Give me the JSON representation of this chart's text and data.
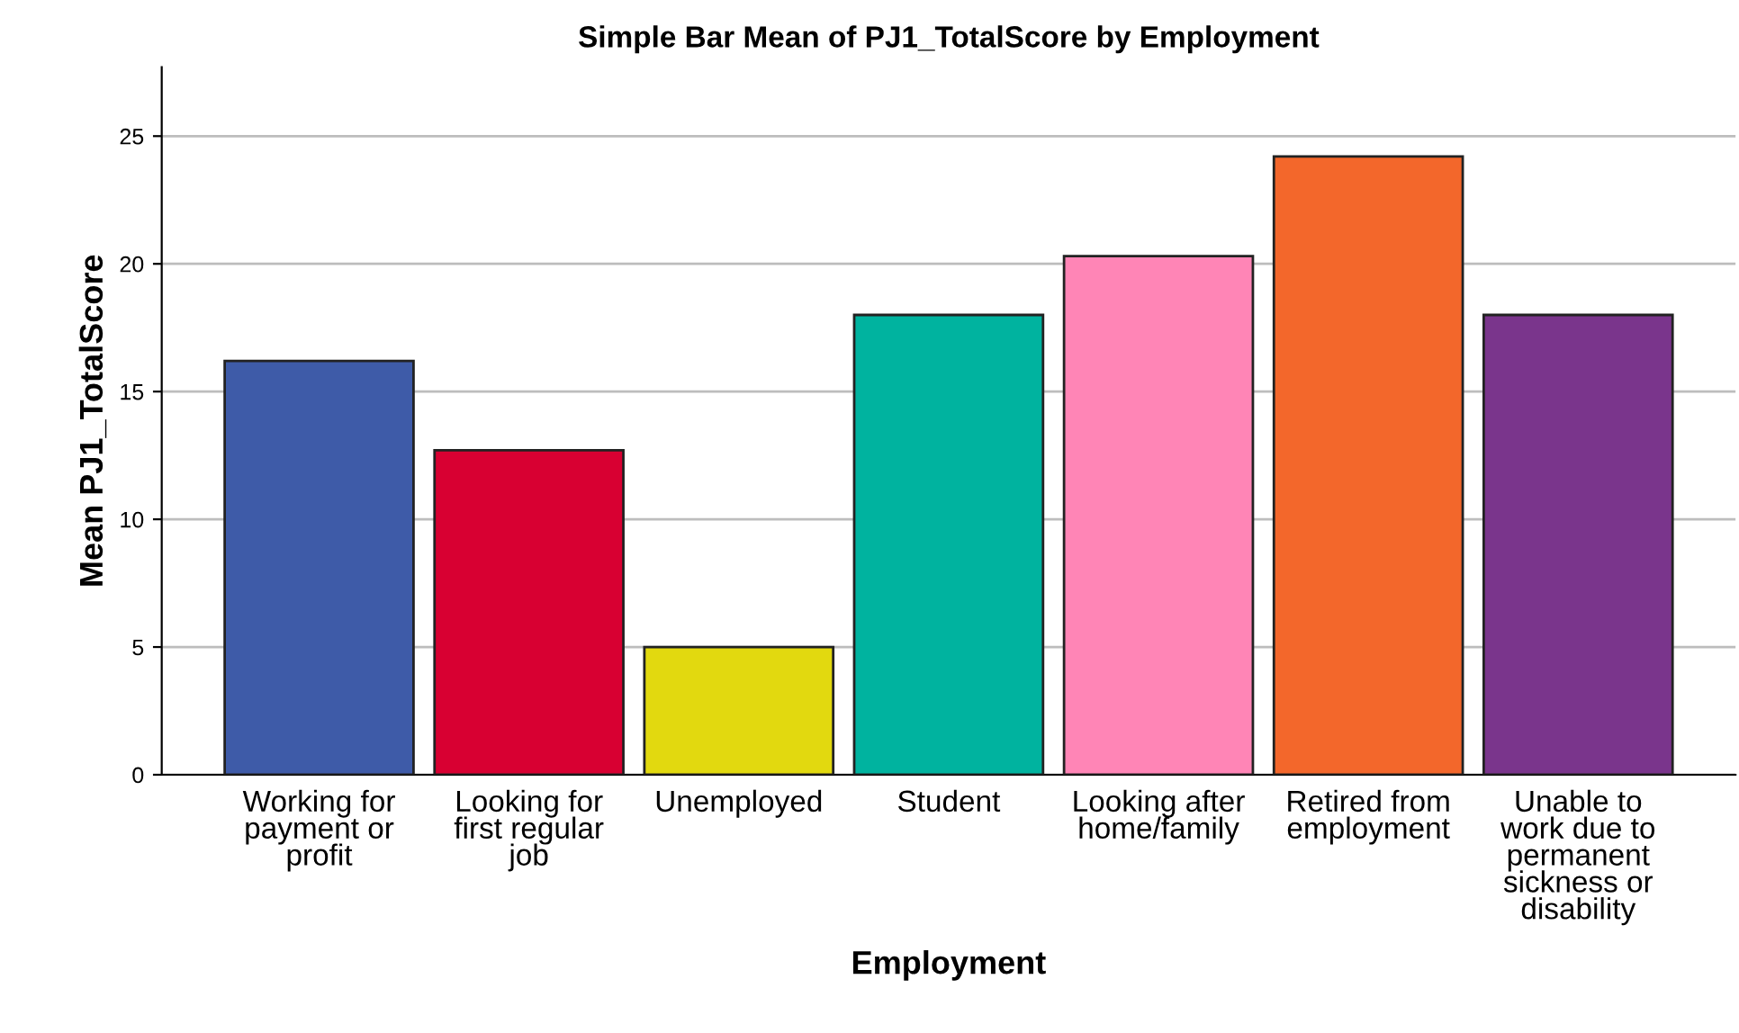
{
  "chart_data": {
    "type": "bar",
    "title": "Simple Bar Mean of PJ1_TotalScore by Employment",
    "xlabel": "Employment",
    "ylabel": "Mean PJ1_TotalScore",
    "categories": [
      "Working for\npayment or\nprofit",
      "Looking for\nfirst regular\njob",
      "Unemployed",
      "Student",
      "Looking after\nhome/family",
      "Retired from\nemployment",
      "Unable to\nwork due to\npermanent\nsickness or\ndisability"
    ],
    "values": [
      16.2,
      12.7,
      5.0,
      18.0,
      20.3,
      24.2,
      18.0
    ],
    "colors": [
      "#3e5ba8",
      "#d80032",
      "#e2d90f",
      "#00b39f",
      "#ff85b6",
      "#f3672b",
      "#7a358c"
    ],
    "ylim": [
      0,
      27.7
    ],
    "yticks": [
      0,
      5,
      10,
      15,
      20,
      25
    ],
    "grid": "y"
  }
}
